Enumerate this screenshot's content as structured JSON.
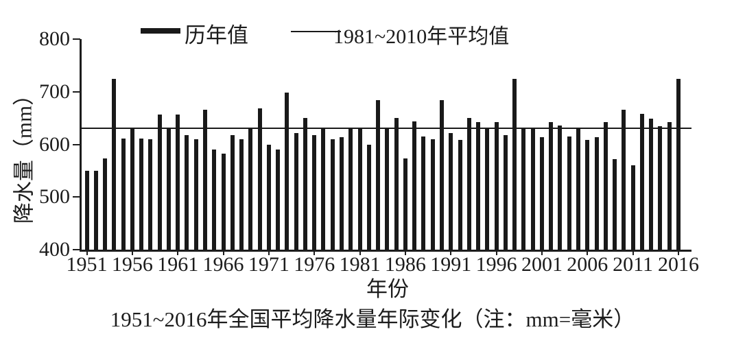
{
  "legend": {
    "annual_label": "历年值",
    "average_label": "1981~2010年平均值"
  },
  "y_axis": {
    "title": "降水量（mm）",
    "ticks": [
      800,
      700,
      600,
      500,
      400
    ]
  },
  "x_axis": {
    "title": "年份",
    "tick_years": [
      1951,
      1956,
      1961,
      1966,
      1971,
      1976,
      1981,
      1986,
      1991,
      1996,
      2001,
      2006,
      2011,
      2016
    ]
  },
  "caption": "1951~2016年全国平均降水量年际变化（注：mm=毫米）",
  "colors": {
    "bar": "#191919",
    "average_line": "#191919",
    "text": "#1c1c1c"
  },
  "chart_data": {
    "type": "bar",
    "title": "1951~2016年全国平均降水量年际变化（注：mm=毫米）",
    "xlabel": "年份",
    "ylabel": "降水量（mm）",
    "ylim": [
      400,
      800
    ],
    "grid": false,
    "legend_position": "top",
    "average_line_value": 630,
    "average_line_label": "1981~2010年平均值",
    "series_label": "历年值",
    "years": [
      1951,
      1952,
      1953,
      1954,
      1955,
      1956,
      1957,
      1958,
      1959,
      1960,
      1961,
      1962,
      1963,
      1964,
      1965,
      1966,
      1967,
      1968,
      1969,
      1970,
      1971,
      1972,
      1973,
      1974,
      1975,
      1976,
      1977,
      1978,
      1979,
      1980,
      1981,
      1982,
      1983,
      1984,
      1985,
      1986,
      1987,
      1988,
      1989,
      1990,
      1991,
      1992,
      1993,
      1994,
      1995,
      1996,
      1997,
      1998,
      1999,
      2000,
      2001,
      2002,
      2003,
      2004,
      2005,
      2006,
      2007,
      2008,
      2009,
      2010,
      2011,
      2012,
      2013,
      2014,
      2015,
      2016
    ],
    "values": [
      550,
      550,
      573,
      724,
      611,
      630,
      611,
      610,
      657,
      630,
      657,
      618,
      610,
      666,
      590,
      583,
      618,
      610,
      630,
      669,
      600,
      590,
      698,
      622,
      650,
      617,
      630,
      610,
      614,
      630,
      630,
      600,
      684,
      630,
      650,
      573,
      643,
      615,
      610,
      684,
      622,
      609,
      650,
      642,
      630,
      642,
      617,
      724,
      630,
      630,
      614,
      642,
      636,
      615,
      630,
      609,
      614,
      642,
      572,
      666,
      560,
      658,
      649,
      635,
      642,
      724
    ]
  }
}
